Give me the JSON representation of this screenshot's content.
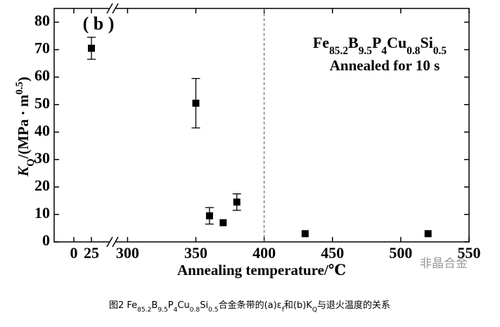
{
  "chart_data": {
    "type": "scatter",
    "panel_label": "( b )",
    "x_label": "Annealing temperature/℃",
    "y_label": [
      [
        "K",
        "i"
      ],
      [
        "Q",
        "sub"
      ],
      [
        "/(MPa · m",
        ""
      ],
      [
        "0.5",
        "sup"
      ],
      [
        ")",
        ""
      ]
    ],
    "annotation": [
      [
        "Fe",
        ""
      ],
      [
        "85.2",
        "sub"
      ],
      [
        "B",
        ""
      ],
      [
        "9.5",
        "sub"
      ],
      [
        "P",
        ""
      ],
      [
        "4",
        "sub"
      ],
      [
        "Cu",
        ""
      ],
      [
        "0.8",
        "sub"
      ],
      [
        "Si",
        ""
      ],
      [
        "0.5",
        "sub"
      ]
    ],
    "annotation_2": "Annealed for 10 s",
    "caption": [
      [
        "图2  Fe",
        ""
      ],
      [
        "85.2",
        "sub"
      ],
      [
        "B",
        ""
      ],
      [
        "9.5",
        "sub"
      ],
      [
        "P",
        ""
      ],
      [
        "4",
        "sub"
      ],
      [
        "Cu",
        ""
      ],
      [
        "0.8",
        "sub"
      ],
      [
        "Si",
        ""
      ],
      [
        "0.5",
        "sub"
      ],
      [
        "合金条带的(a)ε",
        ""
      ],
      [
        "f",
        "sub"
      ],
      [
        "和(b)K",
        ""
      ],
      [
        "Q",
        "sub"
      ],
      [
        "与退火温度的关系",
        ""
      ]
    ],
    "watermark": "非晶合金",
    "xlim": [
      -28,
      550
    ],
    "x_break": [
      55,
      289
    ],
    "xticks": [
      0,
      25,
      300,
      350,
      400,
      450,
      500,
      550
    ],
    "ylim": [
      0,
      85
    ],
    "yticks": [
      0,
      10,
      20,
      30,
      40,
      50,
      60,
      70,
      80
    ],
    "vline": 400,
    "series": [
      {
        "color": "#000000",
        "x": [
          25,
          350,
          360,
          370,
          380,
          430,
          520
        ],
        "values": [
          70.5,
          50.5,
          9.5,
          7,
          14.5,
          3,
          3
        ],
        "errors": [
          4,
          9,
          3,
          null,
          3,
          null,
          null
        ]
      }
    ]
  }
}
